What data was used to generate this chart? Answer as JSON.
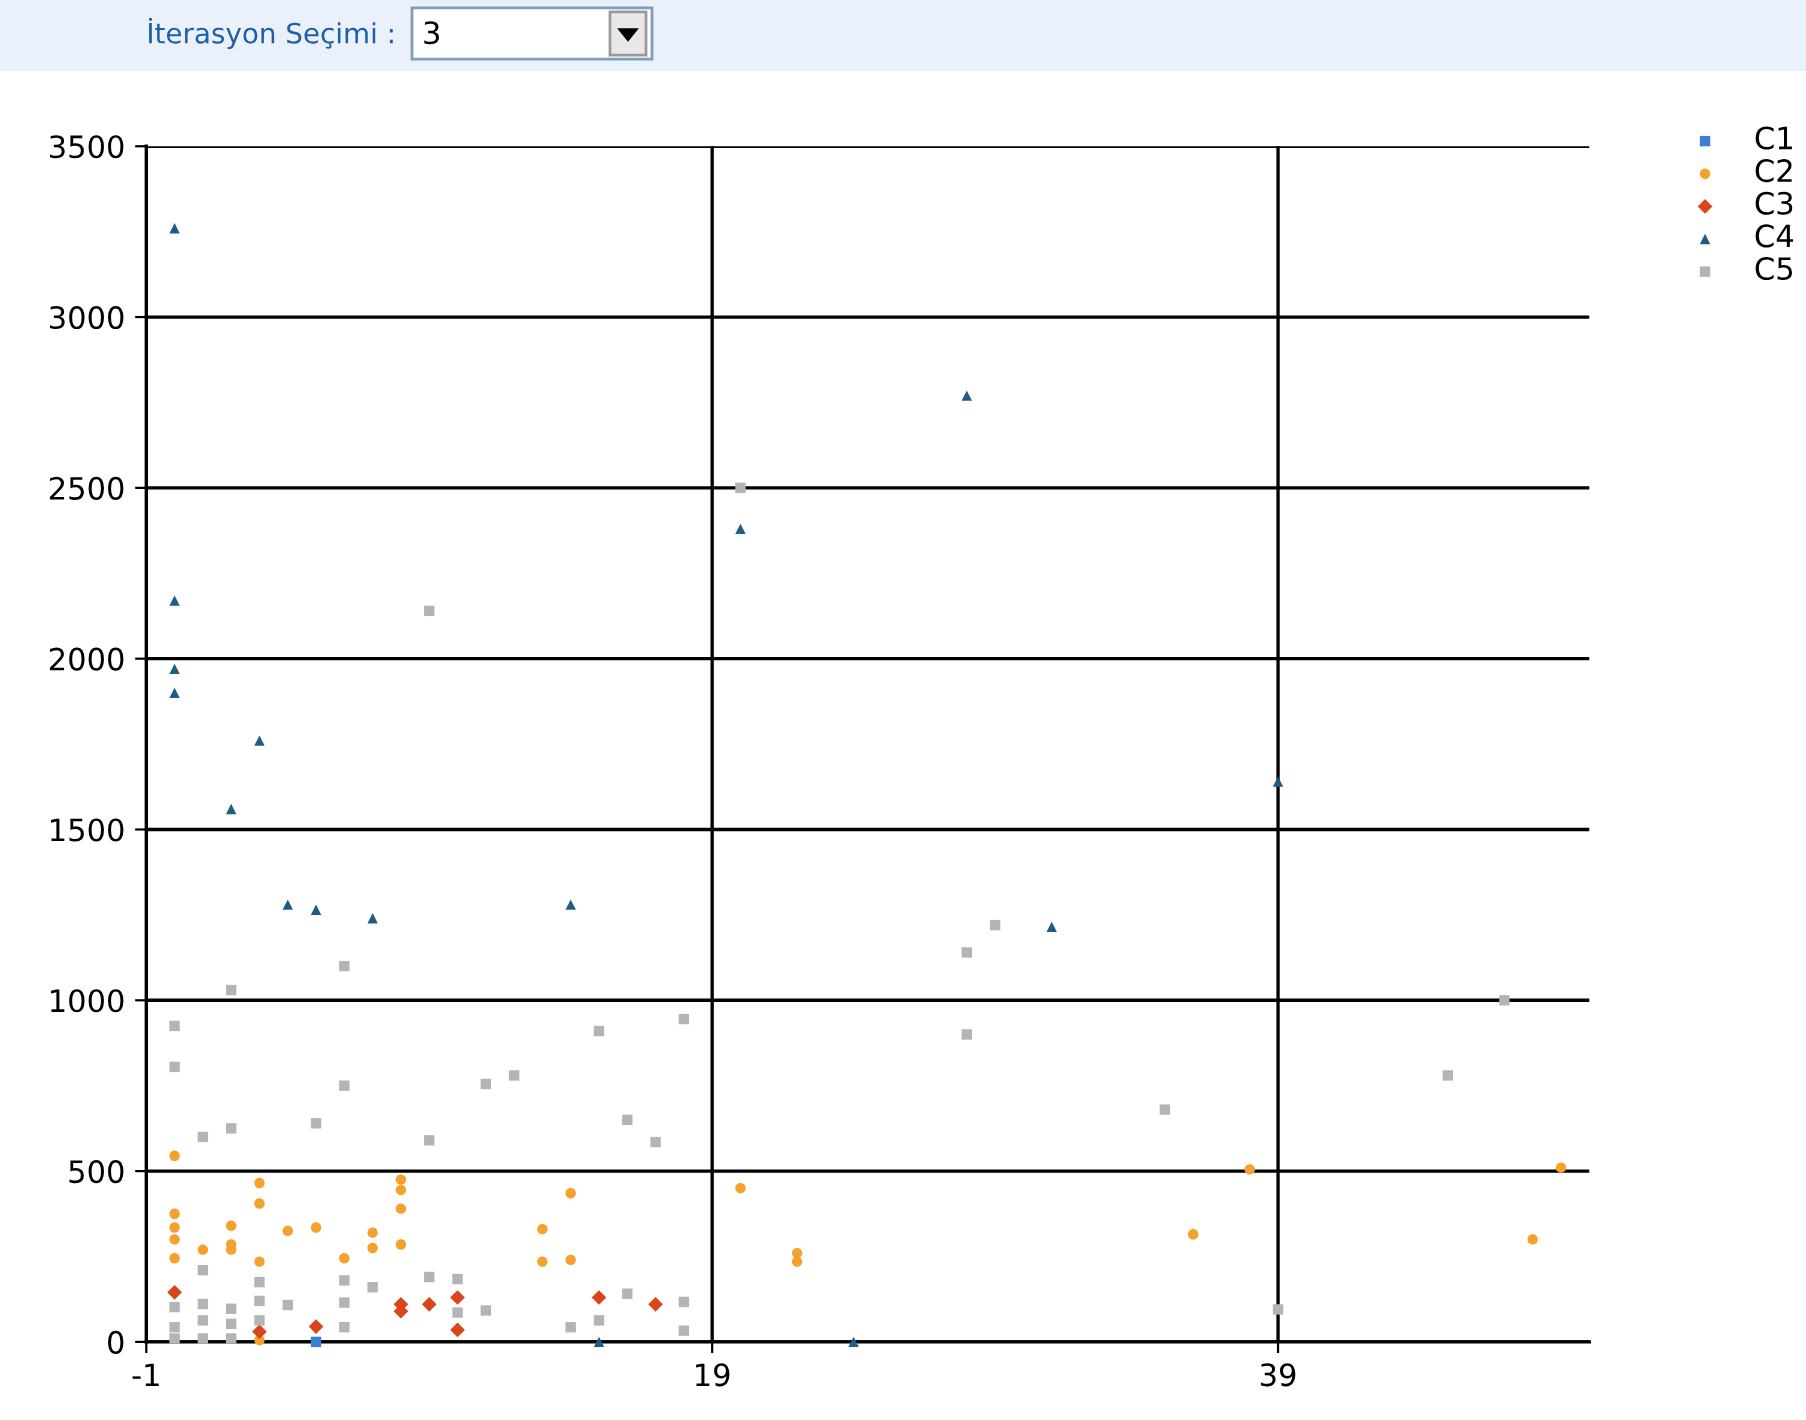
{
  "chart_data": {
    "type": "scatter",
    "annotations": [
      "İterasyon Seçimi :",
      "3"
    ],
    "xlim": [
      -1,
      50
    ],
    "xticks": [
      -1,
      19,
      39
    ],
    "ylim": [
      0,
      3500
    ],
    "yticks": [
      0,
      500,
      1000,
      1500,
      2000,
      2500,
      3000,
      3500
    ],
    "grid": true,
    "legend": "top right",
    "series": [
      {
        "name": "C1",
        "color": "#3c7fd6",
        "marker": "square",
        "x": [
          5
        ],
        "values": [
          0
        ]
      },
      {
        "name": "C2",
        "color": "#f5a12e",
        "marker": "circle",
        "x": [
          0,
          0,
          0,
          0,
          0,
          1,
          2,
          2,
          2,
          3,
          3,
          3,
          3,
          4,
          5,
          6,
          7,
          7,
          8,
          8,
          8,
          8,
          13,
          13,
          14,
          14,
          20,
          22,
          22,
          36,
          38,
          48,
          49
        ],
        "values": [
          545,
          375,
          335,
          300,
          245,
          270,
          340,
          285,
          270,
          465,
          405,
          235,
          5,
          325,
          335,
          245,
          320,
          275,
          475,
          445,
          390,
          285,
          330,
          235,
          435,
          240,
          450,
          260,
          235,
          315,
          505,
          300,
          510
        ]
      },
      {
        "name": "C3",
        "color": "#d9461b",
        "marker": "diamond",
        "x": [
          0,
          3,
          5,
          8,
          8,
          9,
          10,
          10,
          15,
          17
        ],
        "values": [
          145,
          30,
          45,
          110,
          90,
          110,
          130,
          35,
          130,
          110
        ]
      },
      {
        "name": "C4",
        "color": "#1f5b86",
        "marker": "triangle",
        "x": [
          0,
          0,
          0,
          0,
          3,
          2,
          4,
          5,
          7,
          14,
          20,
          28,
          31,
          39,
          24,
          15
        ],
        "values": [
          3260,
          2170,
          1970,
          1900,
          1760,
          1560,
          1280,
          1265,
          1240,
          1280,
          2380,
          2770,
          1215,
          1640,
          0,
          0
        ]
      },
      {
        "name": "C5",
        "color": "#b4b4b4",
        "marker": "square",
        "x": [
          9,
          6,
          20,
          29,
          28,
          28,
          35,
          45,
          47,
          39,
          0,
          0,
          2,
          1,
          2,
          5,
          6,
          9,
          11,
          12,
          15,
          16,
          17,
          18,
          1,
          3,
          3,
          3,
          4,
          6,
          6,
          6,
          7,
          9,
          10,
          10,
          11,
          14,
          15,
          16,
          18,
          18,
          0,
          0,
          0,
          1,
          1,
          1,
          2,
          2,
          2
        ],
        "values": [
          2140,
          1100,
          2500,
          1220,
          1140,
          900,
          680,
          780,
          1000,
          95,
          925,
          805,
          1030,
          600,
          625,
          640,
          750,
          590,
          755,
          780,
          910,
          650,
          585,
          945,
          210,
          175,
          120,
          63,
          108,
          180,
          115,
          43,
          160,
          190,
          184,
          86,
          92,
          43,
          63,
          141,
          117,
          33,
          102,
          43,
          10,
          111,
          63,
          10,
          97,
          53,
          10
        ]
      }
    ]
  }
}
